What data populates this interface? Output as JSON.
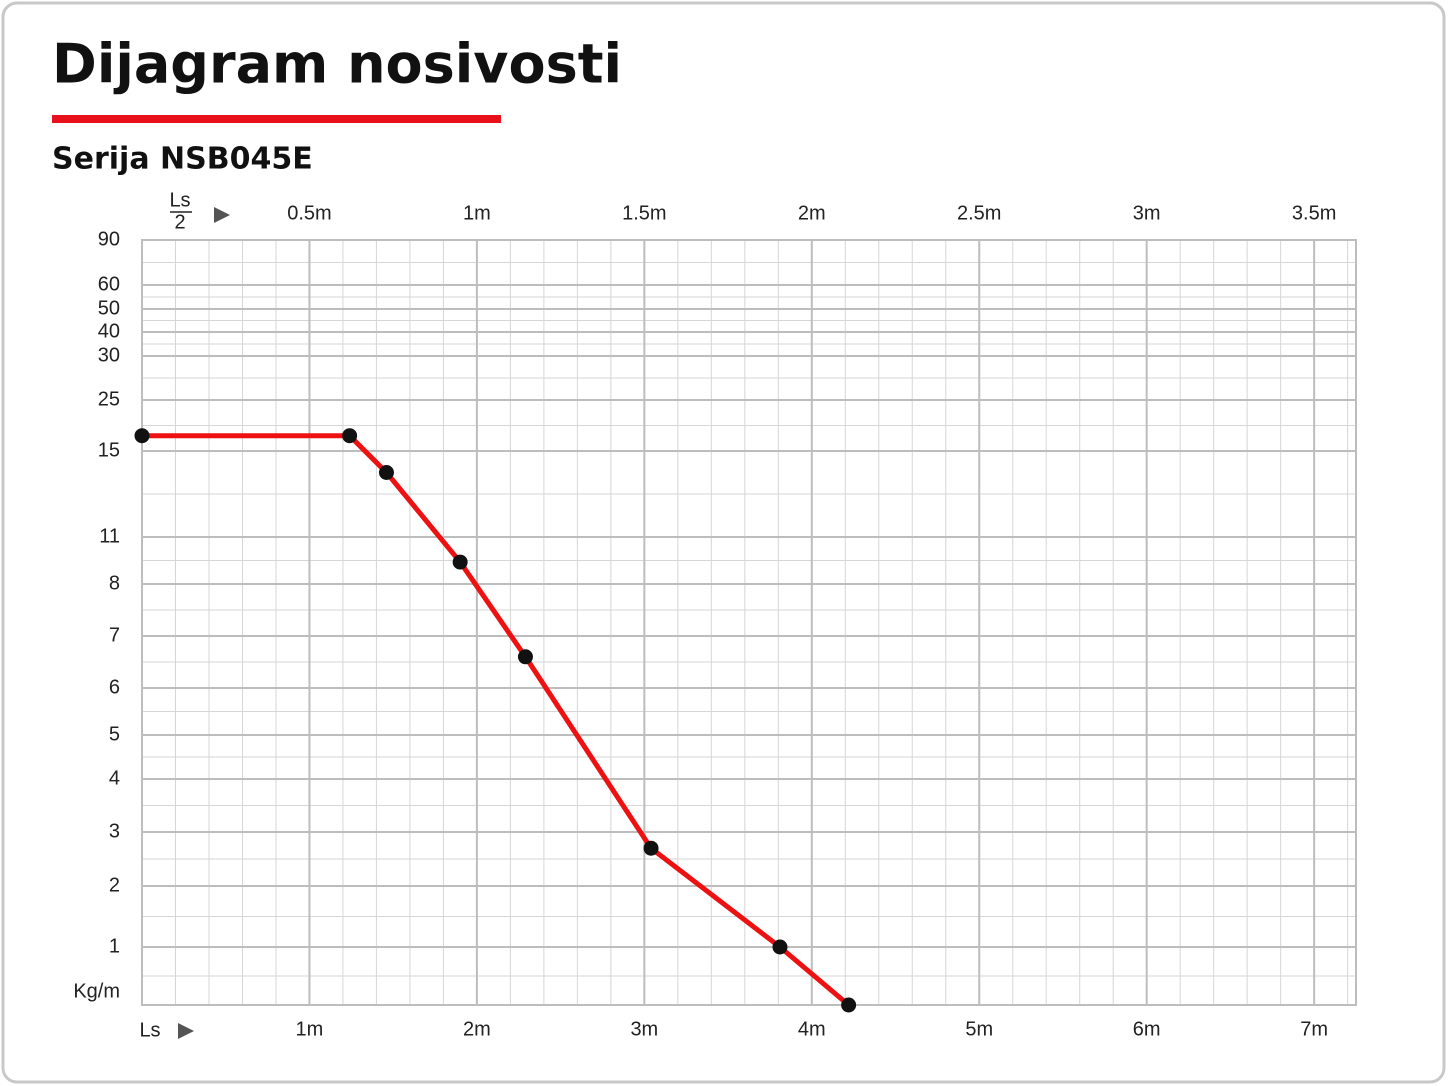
{
  "chart_data": {
    "type": "line",
    "title": "Dijagram nosivosti",
    "subtitle": "Serija NSB045E",
    "x_label": "Ls",
    "x2_label": [
      "Ls",
      "2"
    ],
    "y_label": "Kg/m",
    "x": [
      0,
      1.24,
      1.46,
      1.9,
      2.29,
      3.04,
      3.81,
      4.22
    ],
    "series": [
      {
        "color": "#ee1111",
        "values": [
          18,
          18,
          14,
          9.4,
          6.6,
          2.7,
          1,
          0
        ]
      }
    ],
    "xlim": [
      0,
      7.25
    ],
    "xticks": [
      {
        "value": 1,
        "label": "1m"
      },
      {
        "value": 2,
        "label": "2m"
      },
      {
        "value": 3,
        "label": "3m"
      },
      {
        "value": 4,
        "label": "4m"
      },
      {
        "value": 5,
        "label": "5m"
      },
      {
        "value": 6,
        "label": "6m"
      },
      {
        "value": 7,
        "label": "7m"
      }
    ],
    "x2lim": [
      0,
      3.625
    ],
    "x2ticks": [
      {
        "value": 0.5,
        "label": "0.5m"
      },
      {
        "value": 1,
        "label": "1m"
      },
      {
        "value": 1.5,
        "label": "1.5m"
      },
      {
        "value": 2,
        "label": "2m"
      },
      {
        "value": 2.5,
        "label": "2.5m"
      },
      {
        "value": 3,
        "label": "3m"
      },
      {
        "value": 3.5,
        "label": "3.5m"
      }
    ],
    "ylim": [
      0,
      90
    ],
    "yticks": [
      90,
      60,
      50,
      40,
      30,
      25,
      15,
      11,
      8,
      7,
      6,
      5,
      4,
      3,
      2,
      1
    ],
    "grid": true
  }
}
